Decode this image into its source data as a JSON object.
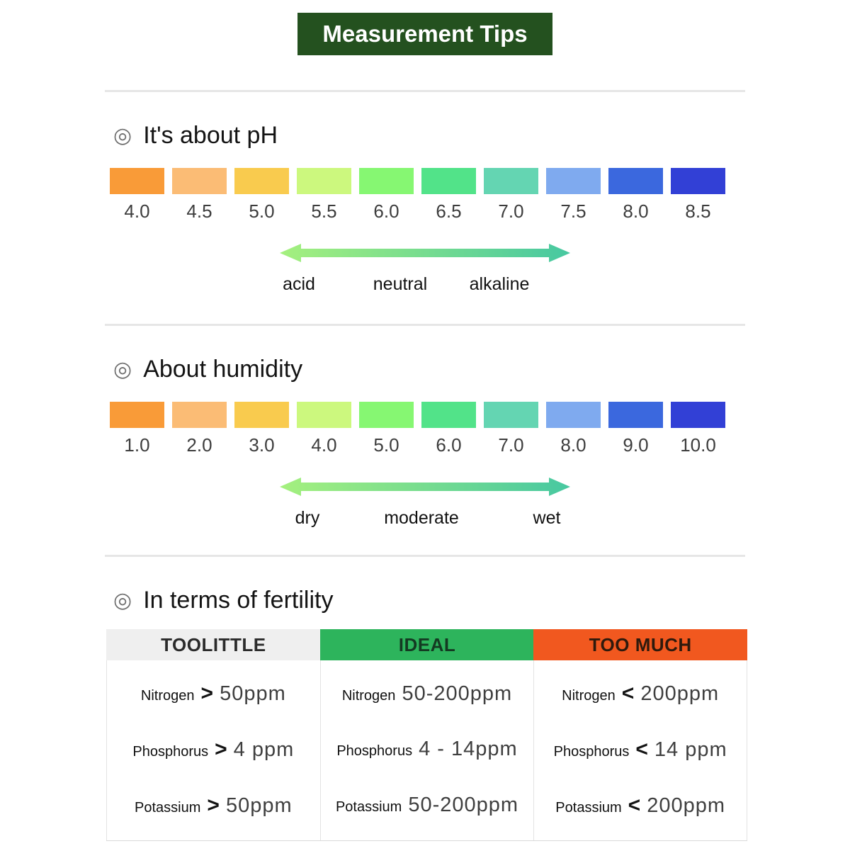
{
  "title": {
    "text": "Measurement Tips",
    "bg_color": "#24511f",
    "fg_color": "#ffffff"
  },
  "arrow_gradient": {
    "from": "#a5f07e",
    "to": "#47c8a1"
  },
  "sections": {
    "ph": {
      "bullet_icon": "◎",
      "heading": "It's about pH",
      "scale_stops": [
        {
          "value": "4.0",
          "color": "#f99b38"
        },
        {
          "value": "4.5",
          "color": "#fbbc75"
        },
        {
          "value": "5.0",
          "color": "#f9cb4e"
        },
        {
          "value": "5.5",
          "color": "#ccf87e"
        },
        {
          "value": "6.0",
          "color": "#86f772"
        },
        {
          "value": "6.5",
          "color": "#52e389"
        },
        {
          "value": "7.0",
          "color": "#64d5b2"
        },
        {
          "value": "7.5",
          "color": "#7faaef"
        },
        {
          "value": "8.0",
          "color": "#3b68de"
        },
        {
          "value": "8.5",
          "color": "#3240d6"
        }
      ],
      "axis_labels": [
        "acid",
        "neutral",
        "alkaline"
      ]
    },
    "humidity": {
      "bullet_icon": "◎",
      "heading": "About humidity",
      "scale_stops": [
        {
          "value": "1.0",
          "color": "#f99b38"
        },
        {
          "value": "2.0",
          "color": "#fbbc75"
        },
        {
          "value": "3.0",
          "color": "#f9cb4e"
        },
        {
          "value": "4.0",
          "color": "#ccf87e"
        },
        {
          "value": "5.0",
          "color": "#86f772"
        },
        {
          "value": "6.0",
          "color": "#52e389"
        },
        {
          "value": "7.0",
          "color": "#64d5b2"
        },
        {
          "value": "8.0",
          "color": "#7faaef"
        },
        {
          "value": "9.0",
          "color": "#3b68de"
        },
        {
          "value": "10.0",
          "color": "#3240d6"
        }
      ],
      "axis_labels": [
        "dry",
        "moderate",
        "wet"
      ]
    },
    "fertility": {
      "bullet_icon": "◎",
      "heading": "In terms of fertility",
      "columns": [
        {
          "header": "TOOLITTLE",
          "header_bg": "#efefef",
          "header_fg": "#2b2b2b",
          "rows": [
            {
              "label": "Nitrogen",
              "op": ">",
              "value": "50ppm"
            },
            {
              "label": "Phosphorus",
              "op": ">",
              "value": "4 ppm"
            },
            {
              "label": "Potassium",
              "op": ">",
              "value": "50ppm"
            }
          ]
        },
        {
          "header": "IDEAL",
          "header_bg": "#2db45c",
          "header_fg": "#143a22",
          "rows": [
            {
              "label": "Nitrogen",
              "op": "",
              "value": "50-200ppm"
            },
            {
              "label": "Phosphorus",
              "op": "",
              "value": "4 - 14ppm"
            },
            {
              "label": "Potassium",
              "op": "",
              "value": "50-200ppm"
            }
          ]
        },
        {
          "header": "TOO MUCH",
          "header_bg": "#f1581f",
          "header_fg": "#2f1a0d",
          "rows": [
            {
              "label": "Nitrogen",
              "op": "<",
              "value": "200ppm"
            },
            {
              "label": "Phosphorus",
              "op": "<",
              "value": "14 ppm"
            },
            {
              "label": "Potassium",
              "op": "<",
              "value": "200ppm"
            }
          ]
        }
      ]
    }
  }
}
